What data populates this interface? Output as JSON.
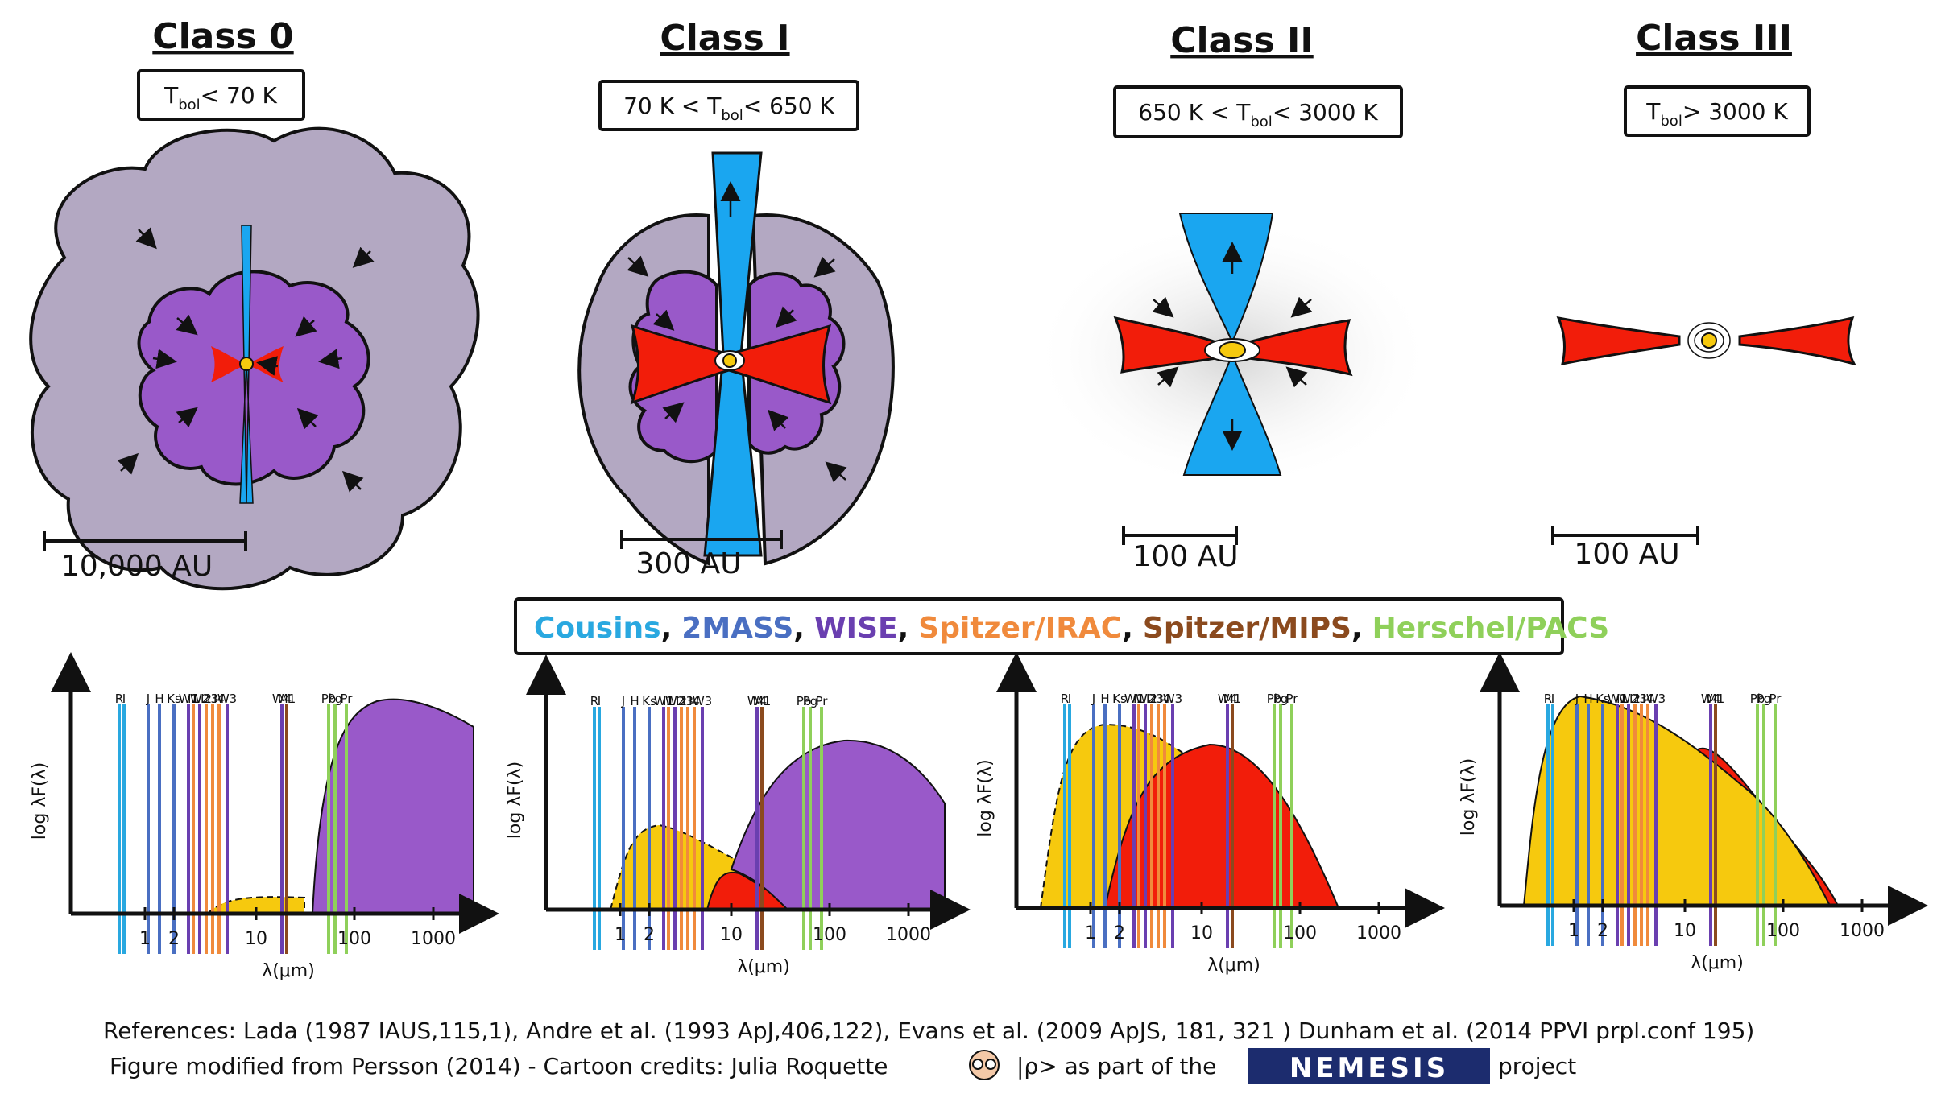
{
  "classes": [
    {
      "title": "Class 0",
      "tbol_prefix": "",
      "tbol_symbol": "T",
      "tbol_sub": "bol",
      "tbol_suffix": "< 70 K",
      "scale": "10,000 AU"
    },
    {
      "title": "Class I",
      "tbol_prefix": "70 K < ",
      "tbol_symbol": "T",
      "tbol_sub": "bol",
      "tbol_suffix": "< 650 K",
      "scale": "300 AU"
    },
    {
      "title": "Class II",
      "tbol_prefix": "650 K < ",
      "tbol_symbol": "T",
      "tbol_sub": "bol",
      "tbol_suffix": "< 3000 K",
      "scale": "100 AU"
    },
    {
      "title": "Class III",
      "tbol_prefix": "",
      "tbol_symbol": "T",
      "tbol_sub": "bol",
      "tbol_suffix": "> 3000 K",
      "scale": "100 AU"
    }
  ],
  "legend": [
    {
      "label": "Cousins",
      "color": "#29a8e0"
    },
    {
      "label": "2MASS",
      "color": "#4a6fc2"
    },
    {
      "label": "WISE",
      "color": "#6a3fb0"
    },
    {
      "label": "Spitzer/IRAC",
      "color": "#f08a3c"
    },
    {
      "label": "Spitzer/MIPS",
      "color": "#8b4a1e"
    },
    {
      "label": "Herschel/PACS",
      "color": "#8fd05a"
    }
  ],
  "legend_separator": ",",
  "sed": {
    "ylabel": "log λF(λ)",
    "xlabel": "λ(μm)",
    "ticks": [
      "1",
      "2",
      "10",
      "100",
      "1000"
    ],
    "bands": [
      {
        "label": "R",
        "color": "#29a8e0"
      },
      {
        "label": "I",
        "color": "#29a8e0"
      },
      {
        "label": "J",
        "color": "#4a6fc2"
      },
      {
        "label": "H",
        "color": "#4a6fc2"
      },
      {
        "label": "Ks",
        "color": "#4a6fc2"
      },
      {
        "label": "W1",
        "color": "#6a3fb0"
      },
      {
        "label": "I1",
        "color": "#f08a3c"
      },
      {
        "label": "W2",
        "color": "#6a3fb0"
      },
      {
        "label": "I2",
        "color": "#f08a3c"
      },
      {
        "label": "I3",
        "color": "#f08a3c"
      },
      {
        "label": "I4",
        "color": "#f08a3c"
      },
      {
        "label": "W3",
        "color": "#6a3fb0"
      },
      {
        "label": "W4",
        "color": "#6a3fb0"
      },
      {
        "label": "M1",
        "color": "#8b4a1e"
      },
      {
        "label": "Pb",
        "color": "#8fd05a"
      },
      {
        "label": "Pg",
        "color": "#8fd05a"
      },
      {
        "label": "Pr",
        "color": "#8fd05a"
      }
    ]
  },
  "footer": {
    "references": "References: Lada (1987 IAUS,115,1),  Andre et al. (1993 ApJ,406,122), Evans et al. (2009  ApJS, 181, 321 ) Dunham et al. (2014 PPVI prpl.conf 195)",
    "credits": "Figure modified from Persson (2014) - Cartoon credits: Julia Roquette",
    "credits_tail": "|ρ> as part of the",
    "logo": "NEMESIS",
    "project": "project"
  },
  "colors": {
    "envelope_outer": "#b3a8c2",
    "envelope_inner": "#9959c9",
    "disk": "#f21d0a",
    "outflow": "#1aa6f0",
    "star": "#f6c90e",
    "sed_star": "#f6c90e",
    "sed_disk": "#f21d0a",
    "sed_envelope": "#9959c9"
  }
}
